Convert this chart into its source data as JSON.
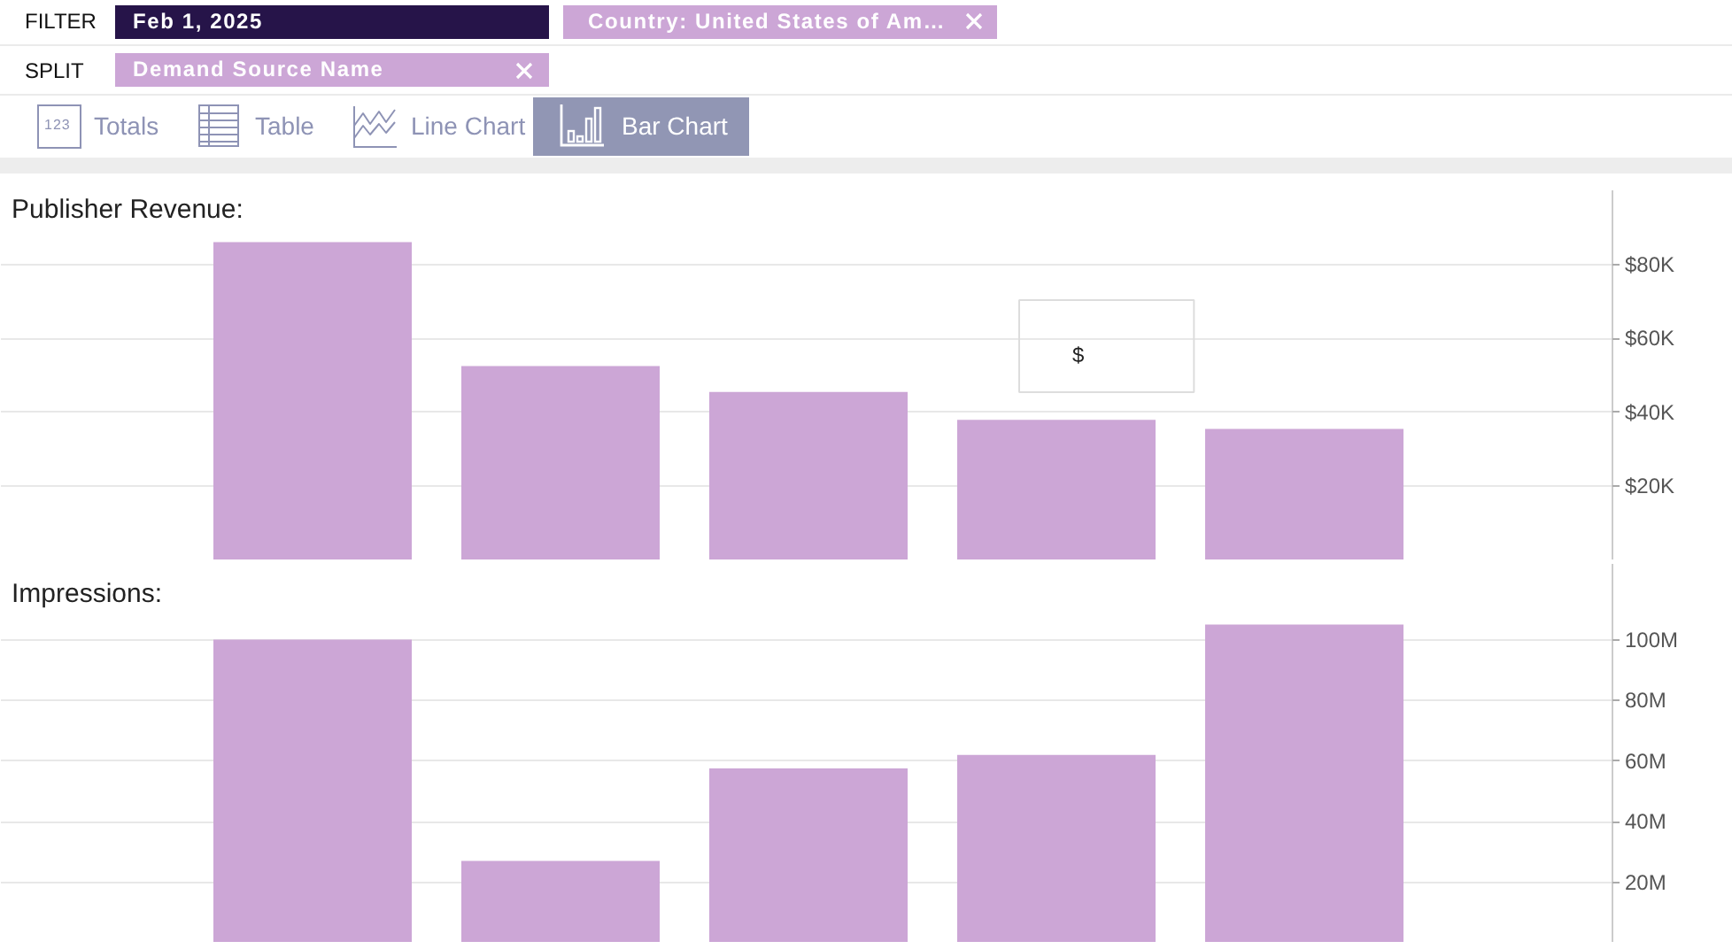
{
  "chart_data": [
    {
      "type": "other",
      "annotations": [
        "FILTER",
        "Feb 1, 2025",
        "Country: United States of Am…",
        "SPLIT",
        "Demand Source Name",
        "123",
        "Totals",
        "Table",
        "Line Chart",
        "Bar Chart"
      ]
    },
    {
      "type": "bar",
      "title": "Publisher Revenue:",
      "categories": [
        null,
        null,
        null,
        null,
        null
      ],
      "values": [
        86000,
        52500,
        45500,
        38000,
        35500
      ],
      "color": "#cca6d6",
      "ylim": [
        0,
        100000
      ],
      "yticks": [
        {
          "value": 20000,
          "label": "$20K"
        },
        {
          "value": 40000,
          "label": "$40K"
        },
        {
          "value": 60000,
          "label": "$60K"
        },
        {
          "value": 80000,
          "label": "$80K"
        }
      ],
      "grid": "y",
      "tick_labels": "y",
      "annotations": [
        "$"
      ]
    },
    {
      "type": "bar",
      "title": "Impressions:",
      "categories": [
        null,
        null,
        null,
        null,
        null
      ],
      "values": [
        100000000,
        27000000,
        57500000,
        62000000,
        105000000
      ],
      "color": "#cca6d6",
      "ylim": [
        0,
        125000000
      ],
      "yticks": [
        {
          "value": 20000000,
          "label": "20M"
        },
        {
          "value": 40000000,
          "label": "40M"
        },
        {
          "value": 60000000,
          "label": "60M"
        },
        {
          "value": 80000000,
          "label": "80M"
        },
        {
          "value": 100000000,
          "label": "100M"
        }
      ],
      "grid": "y",
      "tick_labels": "y"
    }
  ]
}
